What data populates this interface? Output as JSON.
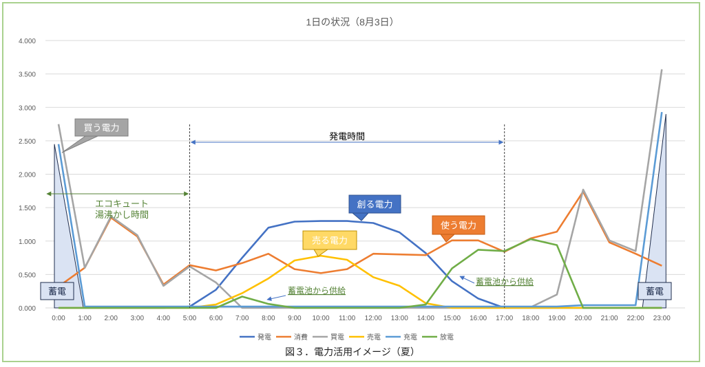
{
  "chart_data": {
    "type": "line",
    "title": "1日の状況（8月3日）",
    "categories": [
      "0:00",
      "1:00",
      "2:00",
      "3:00",
      "4:00",
      "5:00",
      "6:00",
      "7:00",
      "8:00",
      "9:00",
      "10:00",
      "11:00",
      "12:00",
      "13:00",
      "14:00",
      "15:00",
      "16:00",
      "17:00",
      "18:00",
      "19:00",
      "20:00",
      "21:00",
      "22:00",
      "23:00"
    ],
    "yticks": [
      "0.000",
      "0.500",
      "1.000",
      "1.500",
      "2.000",
      "2.500",
      "3.000",
      "3.500",
      "4.000"
    ],
    "ylim": [
      0,
      4
    ],
    "grid": true,
    "legend_position": "bottom",
    "series": [
      {
        "name": "発電",
        "color": "#4472c4",
        "values": [
          0,
          0,
          0,
          0,
          0,
          0.02,
          0.27,
          0.75,
          1.2,
          1.29,
          1.3,
          1.3,
          1.27,
          1.13,
          0.82,
          0.4,
          0.14,
          0,
          0,
          0,
          0,
          0,
          0,
          0
        ]
      },
      {
        "name": "消費",
        "color": "#ed7d31",
        "values": [
          0.32,
          0.6,
          1.35,
          1.07,
          0.35,
          0.64,
          0.56,
          0.67,
          0.81,
          0.58,
          0.52,
          0.58,
          0.81,
          0.8,
          0.79,
          1.01,
          1.01,
          0.84,
          1.04,
          1.14,
          1.74,
          0.98,
          0.81,
          0.63
        ]
      },
      {
        "name": "買電",
        "color": "#a5a5a5",
        "values": [
          2.75,
          0.6,
          1.37,
          1.09,
          0.33,
          0.62,
          0.38,
          0,
          0,
          0,
          0,
          0,
          0,
          0,
          0,
          0,
          0,
          0,
          0.01,
          0.2,
          1.77,
          1.01,
          0.85,
          3.57
        ]
      },
      {
        "name": "売電",
        "color": "#ffc000",
        "values": [
          0,
          0,
          0,
          0,
          0,
          0,
          0.05,
          0.22,
          0.44,
          0.71,
          0.78,
          0.72,
          0.46,
          0.33,
          0.07,
          0,
          0,
          0,
          0,
          0,
          0,
          0,
          0,
          0
        ]
      },
      {
        "name": "充電",
        "color": "#5b9bd5",
        "values": [
          2.45,
          0.02,
          0.02,
          0.02,
          0.02,
          0.02,
          0.02,
          0.02,
          0.02,
          0.02,
          0.02,
          0.02,
          0.02,
          0.02,
          0.02,
          0.02,
          0.02,
          0.02,
          0.02,
          0.02,
          0.04,
          0.04,
          0.04,
          2.93
        ]
      },
      {
        "name": "放電",
        "color": "#70ad47",
        "values": [
          0,
          0,
          0,
          0,
          0,
          0,
          0,
          0.17,
          0.06,
          0,
          0,
          0,
          0,
          0,
          0.05,
          0.59,
          0.87,
          0.85,
          1.03,
          0.94,
          0,
          0,
          0,
          0
        ]
      }
    ],
    "annotations": {
      "hatsuden_jikan": "発電時間",
      "ecocute": "エコキュート",
      "ecocute2": "湯沸かし時間",
      "kau": "買う電力",
      "tsukuru": "創る電力",
      "tsukau": "使う電力",
      "uru": "売る電力",
      "chikuden_left": "蓄電",
      "chikuden_right": "蓄電",
      "kyokyu1": "蓄電池から供給",
      "kyokyu2": "蓄電池から供給"
    }
  },
  "caption": "図３．電力活用イメージ（夏）"
}
